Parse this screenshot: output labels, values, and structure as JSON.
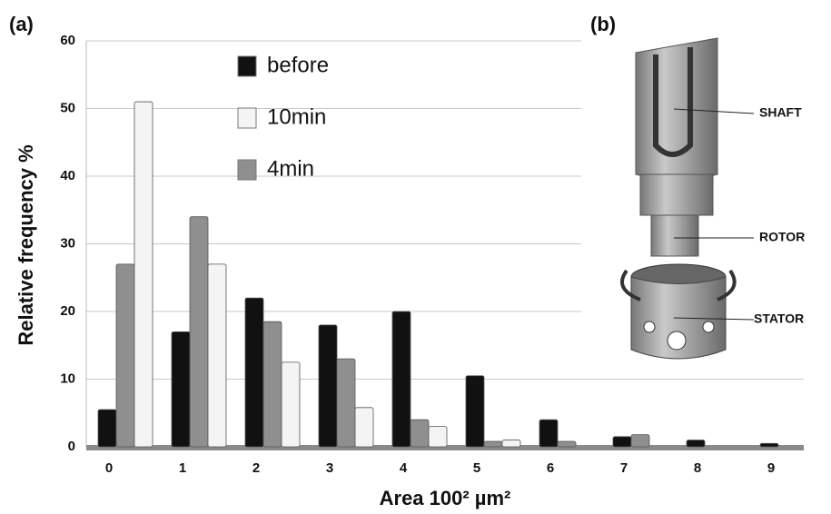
{
  "panel_a": "(a)",
  "panel_b": "(b)",
  "chart_data": {
    "type": "bar",
    "x_label": "Area 100² µm²",
    "y_label": "Relative frequency %",
    "categories": [
      "0",
      "1",
      "2",
      "3",
      "4",
      "5",
      "6",
      "7",
      "8",
      "9"
    ],
    "series": [
      {
        "name": "before",
        "color": "#111111",
        "values": [
          5.5,
          17,
          22,
          18,
          20,
          10.5,
          4,
          1.5,
          1,
          0.5
        ]
      },
      {
        "name": "10min",
        "color": "#f4f4f4",
        "values": [
          51,
          27,
          12.5,
          5.8,
          3,
          1,
          0,
          0,
          0,
          0
        ]
      },
      {
        "name": "4min",
        "color": "#8f8f8f",
        "values": [
          27,
          34,
          18.5,
          13,
          4,
          0.8,
          0.8,
          1.8,
          0,
          0
        ]
      }
    ],
    "ylim": [
      0,
      60
    ],
    "yticks": [
      0,
      10,
      20,
      30,
      40,
      50,
      60
    ],
    "grid": true,
    "legend": "top"
  },
  "diagram": {
    "labels": [
      "SHAFT",
      "ROTOR",
      "STATOR"
    ]
  }
}
